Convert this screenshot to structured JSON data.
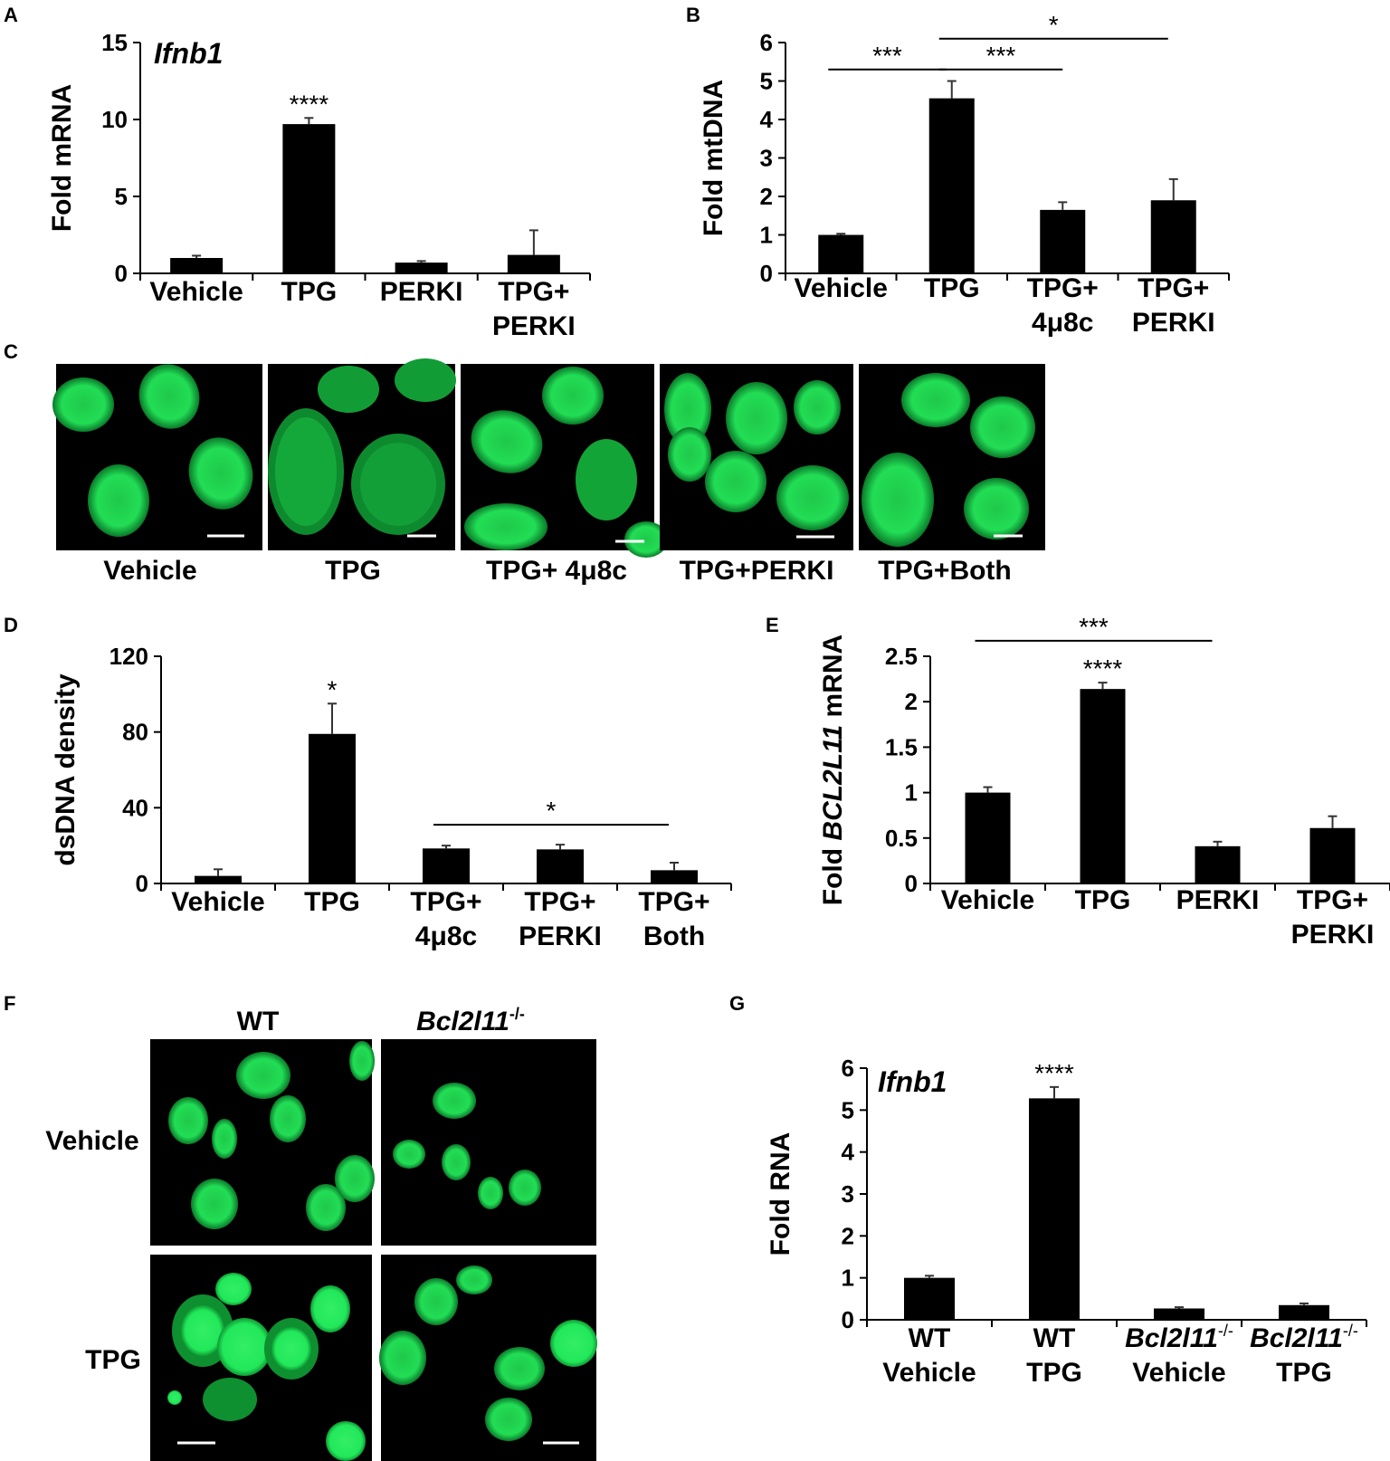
{
  "figure": {
    "panels": {
      "A": {
        "letter": "A"
      },
      "B": {
        "letter": "B"
      },
      "C": {
        "letter": "C",
        "labels": [
          "Vehicle",
          "TPG",
          "TPG+ 4μ8c",
          "TPG+PERKI",
          "TPG+Both"
        ]
      },
      "D": {
        "letter": "D"
      },
      "E": {
        "letter": "E"
      },
      "F": {
        "letter": "F",
        "col_labels": [
          "WT",
          "Bcl2l11"
        ],
        "col_sup": "-/-",
        "row_labels": [
          "Vehicle",
          "TPG"
        ]
      },
      "G": {
        "letter": "G"
      }
    }
  },
  "chart_data": [
    {
      "id": "A",
      "type": "bar",
      "ylabel": "Fold mRNA",
      "annotation": "Ifnb1",
      "ylim": [
        0,
        15
      ],
      "yticks": [
        "0",
        "5",
        "10",
        "15"
      ],
      "categories": [
        [
          "Vehicle"
        ],
        [
          "TPG"
        ],
        [
          "PERKI"
        ],
        [
          "TPG+",
          "PERKI"
        ]
      ],
      "values": [
        1.0,
        9.7,
        0.7,
        1.2
      ],
      "errors": [
        0.15,
        0.4,
        0.1,
        1.6
      ],
      "bar_marks": [
        "",
        "****",
        "",
        ""
      ],
      "brackets": []
    },
    {
      "id": "B",
      "type": "bar",
      "ylabel": "Fold mtDNA",
      "ylim": [
        0,
        6
      ],
      "yticks": [
        "0",
        "1",
        "2",
        "3",
        "4",
        "5",
        "6"
      ],
      "categories": [
        [
          "Vehicle"
        ],
        [
          "TPG"
        ],
        [
          "TPG+",
          "4μ8c"
        ],
        [
          "TPG+",
          "PERKI"
        ]
      ],
      "values": [
        1.0,
        4.55,
        1.65,
        1.9
      ],
      "errors": [
        0.03,
        0.45,
        0.2,
        0.55
      ],
      "bar_marks": [
        "",
        "",
        "",
        ""
      ],
      "brackets": [
        {
          "from": 0,
          "to": 1,
          "y": 5.3,
          "label": "***"
        },
        {
          "from": 1,
          "to": 2,
          "y": 5.3,
          "label": "***"
        },
        {
          "from": 1,
          "to": 3,
          "y": 6.1,
          "label": "*"
        }
      ]
    },
    {
      "id": "D",
      "type": "bar",
      "ylabel": "dsDNA density",
      "ylim": [
        0,
        120
      ],
      "yticks": [
        "0",
        "40",
        "80",
        "120"
      ],
      "categories": [
        [
          "Vehicle"
        ],
        [
          "TPG"
        ],
        [
          "TPG+",
          "4μ8c"
        ],
        [
          "TPG+",
          "PERKI"
        ],
        [
          "TPG+",
          "Both"
        ]
      ],
      "values": [
        4,
        79,
        18.5,
        18,
        7
      ],
      "errors": [
        3.5,
        16,
        1.5,
        2.5,
        4
      ],
      "bar_marks": [
        "",
        "*",
        "",
        "",
        ""
      ],
      "brackets": [
        {
          "from": 2,
          "to": 4,
          "y": 31,
          "label": "*"
        }
      ]
    },
    {
      "id": "E",
      "type": "bar",
      "ylabel_prefix": "Fold ",
      "ylabel_gene": "BCL2L11",
      "ylabel_suffix": " mRNA",
      "ylim": [
        0,
        2.5
      ],
      "yticks": [
        "0",
        "0.5",
        "1",
        "1.5",
        "2",
        "2.5"
      ],
      "categories": [
        [
          "Vehicle"
        ],
        [
          "TPG"
        ],
        [
          "PERKI"
        ],
        [
          "TPG+",
          "PERKI"
        ]
      ],
      "values": [
        1.0,
        2.14,
        0.41,
        0.61
      ],
      "errors": [
        0.06,
        0.07,
        0.05,
        0.13
      ],
      "bar_marks": [
        "",
        "****",
        "",
        ""
      ],
      "brackets": [
        {
          "from": 0,
          "to": 2,
          "y": 2.67,
          "label": "***"
        }
      ]
    },
    {
      "id": "G",
      "type": "bar",
      "ylabel": "Fold RNA",
      "annotation": "Ifnb1",
      "ylim": [
        0,
        6
      ],
      "yticks": [
        "0",
        "1",
        "2",
        "3",
        "4",
        "5",
        "6"
      ],
      "categories": [
        [
          "WT",
          "Vehicle"
        ],
        [
          "WT",
          "TPG"
        ],
        [
          "Bcl2l11",
          "Vehicle"
        ],
        [
          "Bcl2l11",
          "TPG"
        ]
      ],
      "category_sup": [
        "",
        "",
        "-/-",
        "-/-"
      ],
      "category_italic_first": [
        false,
        false,
        true,
        true
      ],
      "values": [
        1.0,
        5.28,
        0.27,
        0.35
      ],
      "errors": [
        0.05,
        0.27,
        0.03,
        0.04
      ],
      "bar_marks": [
        "",
        "****",
        "",
        ""
      ],
      "brackets": []
    }
  ]
}
